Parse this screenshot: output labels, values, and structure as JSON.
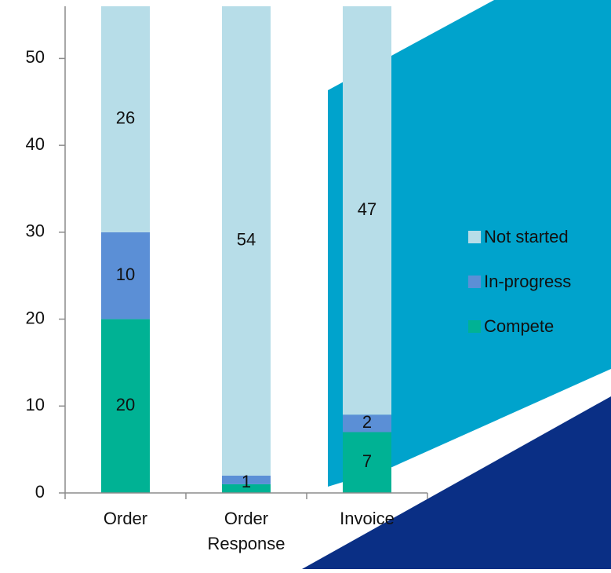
{
  "chart_data": {
    "type": "bar",
    "stacked": true,
    "categories": [
      "Order",
      "Order Response",
      "Invoice"
    ],
    "category_lines": [
      [
        "Order"
      ],
      [
        "Order",
        "Response"
      ],
      [
        "Invoice"
      ]
    ],
    "series": [
      {
        "name": "Compete",
        "values": [
          20,
          1,
          7
        ],
        "labels": [
          "20",
          "",
          "7"
        ],
        "color": "#00b294"
      },
      {
        "name": "In-progress",
        "values": [
          10,
          1,
          2
        ],
        "labels": [
          "10",
          "1",
          "2"
        ],
        "color": "#5b8fd6"
      },
      {
        "name": "Not started",
        "values": [
          26,
          54,
          47
        ],
        "labels": [
          "26",
          "54",
          "47"
        ],
        "color": "#b7dde8"
      }
    ],
    "legend_order": [
      "Not started",
      "In-progress",
      "Compete"
    ],
    "yticks": [
      0,
      10,
      20,
      30,
      40,
      50
    ],
    "ylim": [
      0,
      56
    ],
    "grid": false,
    "legend_position": "right"
  },
  "decoration": {
    "teal_panel_color": "#00a3cc",
    "navy_panel_color": "#0a2f85"
  }
}
